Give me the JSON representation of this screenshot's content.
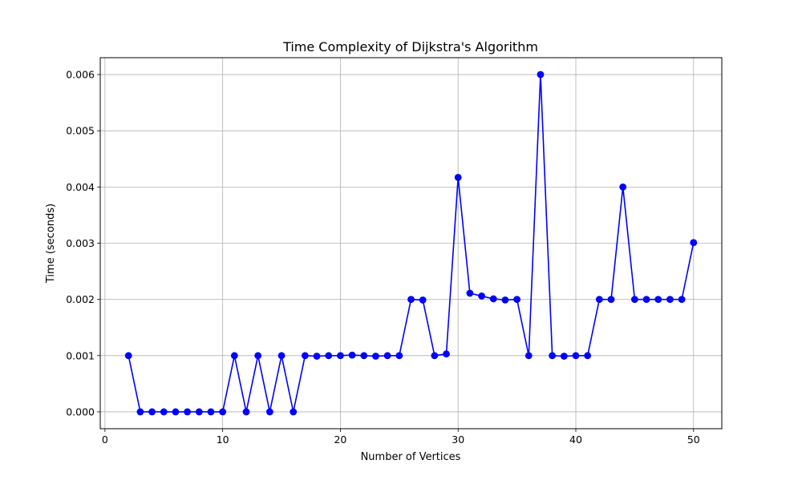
{
  "chart_data": {
    "type": "line",
    "title": "Time Complexity of Dijkstra's Algorithm",
    "xlabel": "Number of Vertices",
    "ylabel": "Time (seconds)",
    "xlim": [
      -0.4,
      52.4
    ],
    "ylim": [
      -0.0003,
      0.0063
    ],
    "xticks": [
      0,
      10,
      20,
      30,
      40,
      50
    ],
    "xtick_labels": [
      "0",
      "10",
      "20",
      "30",
      "40",
      "50"
    ],
    "yticks": [
      0.0,
      0.001,
      0.002,
      0.003,
      0.004,
      0.005,
      0.006
    ],
    "ytick_labels": [
      "0.000",
      "0.001",
      "0.002",
      "0.003",
      "0.004",
      "0.005",
      "0.006"
    ],
    "grid": true,
    "series": [
      {
        "color": "#0000ff",
        "marker": "circle",
        "x": [
          2,
          3,
          4,
          5,
          6,
          7,
          8,
          9,
          10,
          11,
          12,
          13,
          14,
          15,
          16,
          17,
          18,
          19,
          20,
          21,
          22,
          23,
          24,
          25,
          26,
          27,
          28,
          29,
          30,
          31,
          32,
          33,
          34,
          35,
          36,
          37,
          38,
          39,
          40,
          41,
          42,
          43,
          44,
          45,
          46,
          47,
          48,
          49,
          50
        ],
        "values": [
          0.001,
          0.0,
          0.0,
          0.0,
          0.0,
          0.0,
          0.0,
          0.0,
          0.0,
          0.001,
          0.0,
          0.001,
          0.0,
          0.001,
          0.0,
          0.001,
          0.00099,
          0.001,
          0.001,
          0.00101,
          0.001,
          0.00099,
          0.001,
          0.001,
          0.002,
          0.00199,
          0.001,
          0.00103,
          0.00417,
          0.00211,
          0.00206,
          0.00201,
          0.00199,
          0.002,
          0.001,
          0.006,
          0.001,
          0.00099,
          0.001,
          0.001,
          0.002,
          0.002,
          0.004,
          0.002,
          0.002,
          0.002,
          0.002,
          0.002,
          0.00301
        ]
      }
    ]
  }
}
